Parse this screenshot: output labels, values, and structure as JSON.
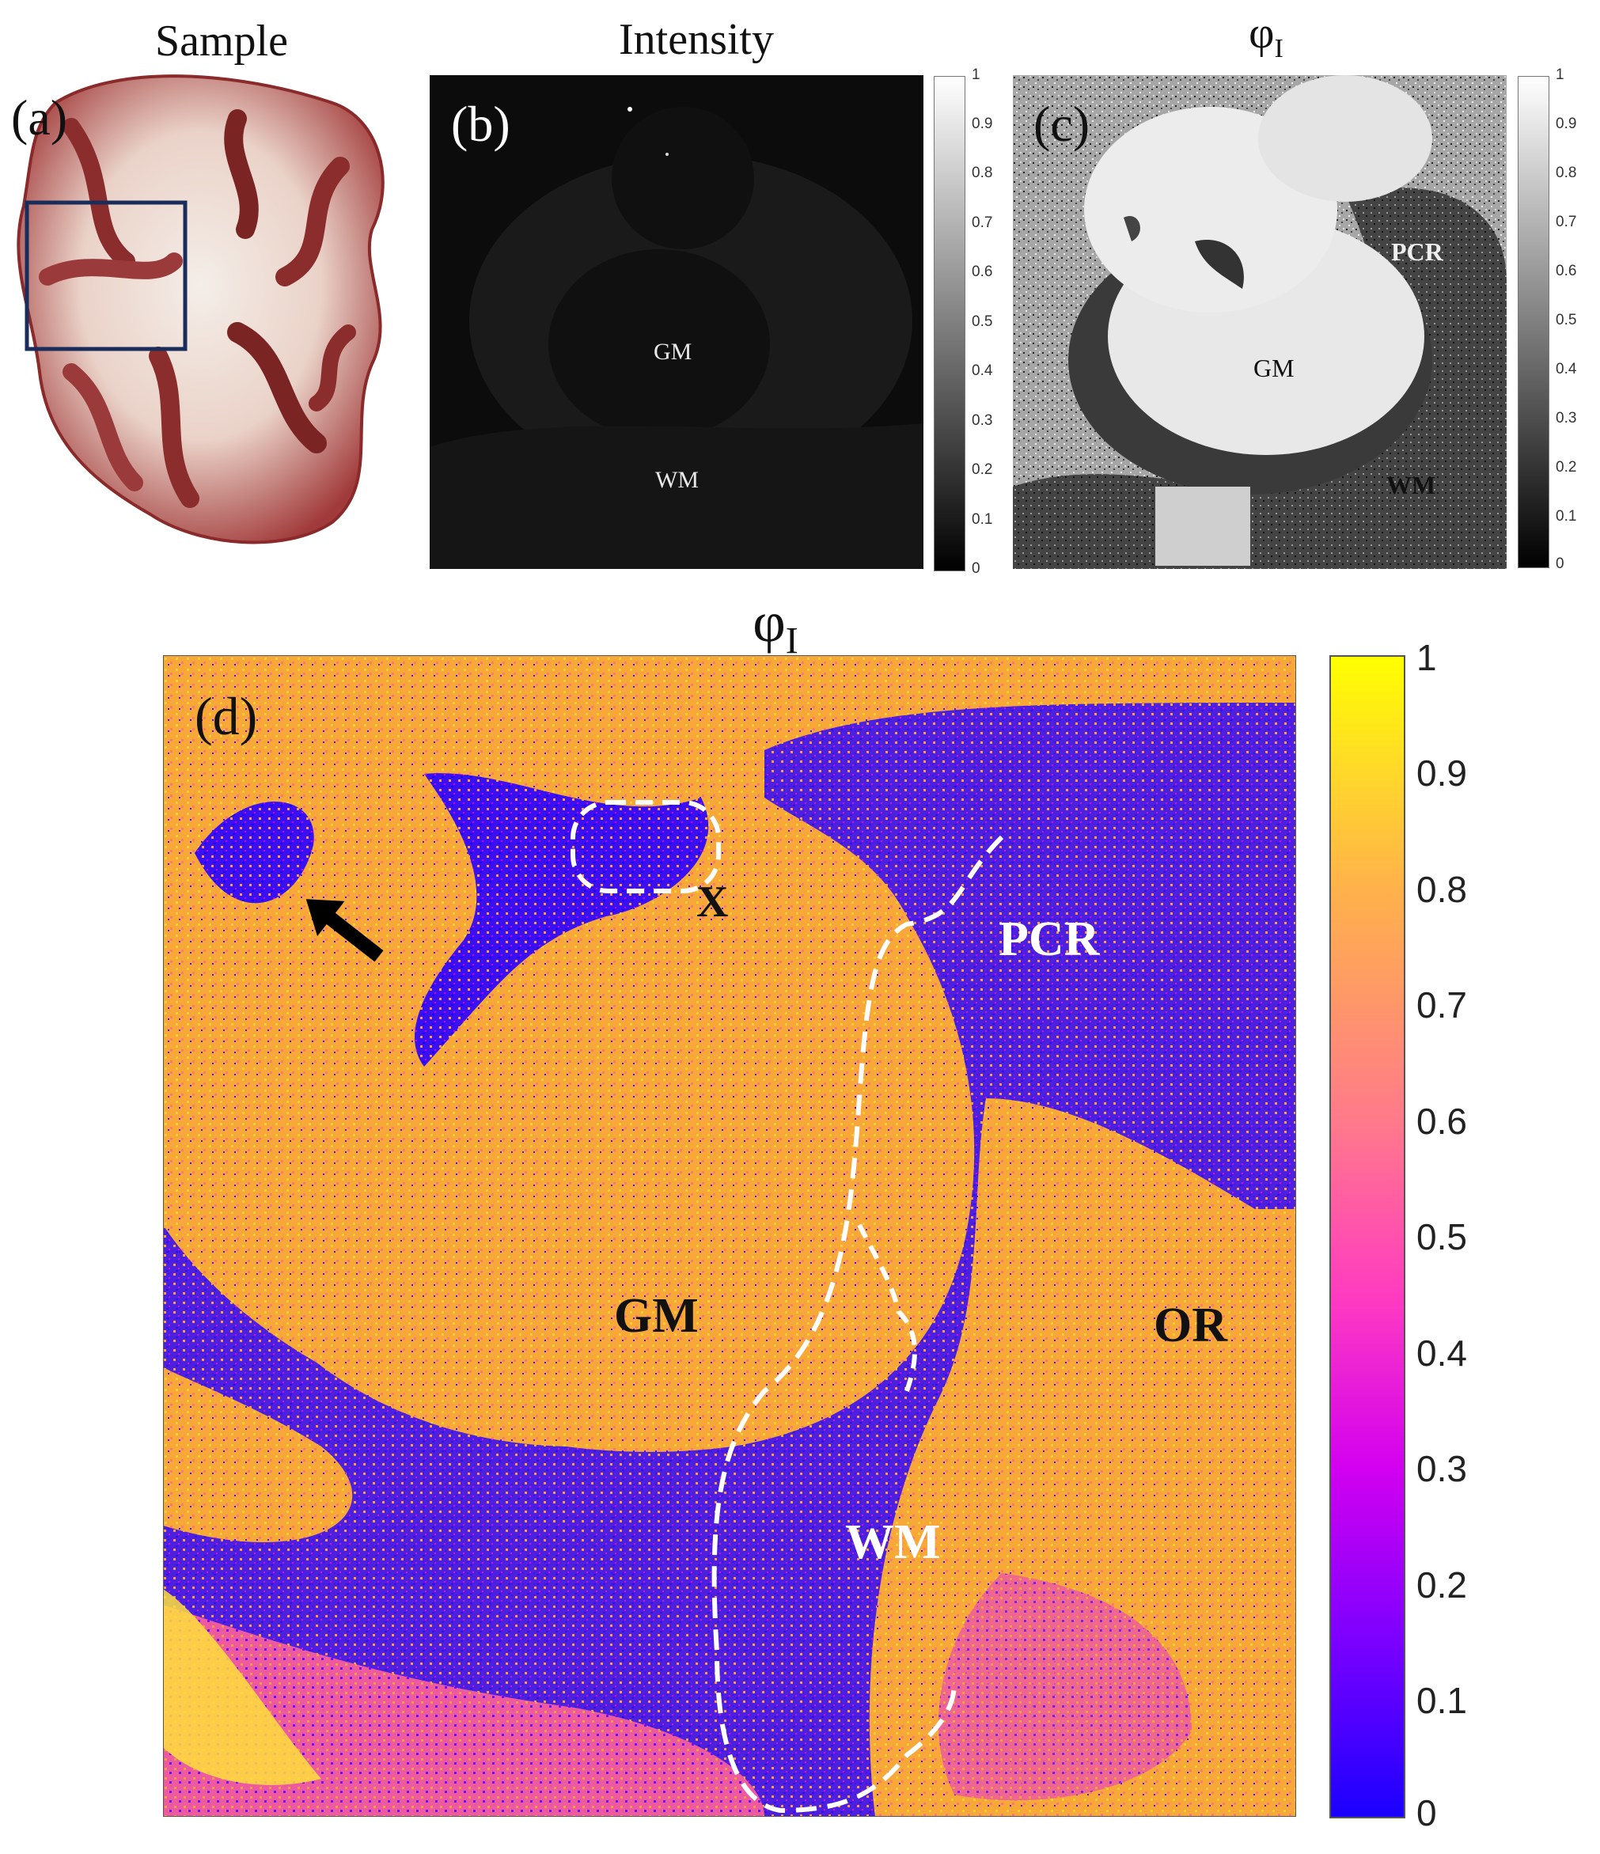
{
  "figure": {
    "panels": [
      {
        "id": "a",
        "letter": "(a)",
        "title": "Sample"
      },
      {
        "id": "b",
        "letter": "(b)",
        "title": "Intensity",
        "labels": {
          "gm": "GM",
          "wm": "WM"
        }
      },
      {
        "id": "c",
        "letter": "(c)",
        "title": "φ",
        "title_sub": "I",
        "labels": {
          "pcr": "PCR",
          "gm": "GM",
          "wm": "WM"
        }
      },
      {
        "id": "d",
        "letter": "(d)",
        "title": "φ",
        "title_sub": "I",
        "labels": {
          "x": "X",
          "pcr": "PCR",
          "gm": "GM",
          "or": "OR",
          "wm": "WM"
        }
      }
    ],
    "small_colorbar_ticks": [
      "1",
      "0.9",
      "0.8",
      "0.7",
      "0.6",
      "0.5",
      "0.4",
      "0.3",
      "0.2",
      "0.1",
      "0"
    ],
    "large_colorbar_ticks": [
      "1",
      "0.9",
      "0.8",
      "0.7",
      "0.6",
      "0.5",
      "0.4",
      "0.3",
      "0.2",
      "0.1",
      "0"
    ],
    "colormaps": {
      "grayscale": [
        "#000000",
        "#ffffff"
      ],
      "plasma_like": [
        "#1a00ff",
        "#7a00ff",
        "#d200f0",
        "#ff3cc0",
        "#ff7a8a",
        "#ffb24a",
        "#ffd82a",
        "#ffff00"
      ]
    }
  }
}
